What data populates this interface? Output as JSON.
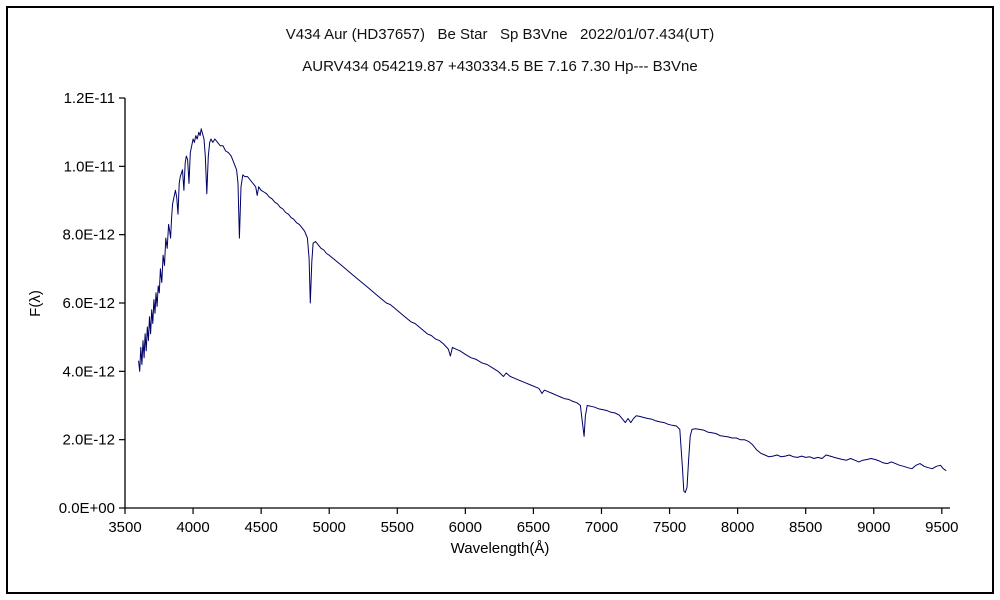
{
  "chart_data": {
    "type": "line",
    "title_line1": "V434 Aur (HD37657)   Be Star   Sp B3Vne   2022/01/07.434(UT)",
    "title_line2": "AURV434 054219.87 +430334.5 BE 7.16 7.30 Hp--- B3Vne",
    "xlabel": "Wavelength(Å)",
    "ylabel": "F(λ)",
    "xlim": [
      3500,
      9560
    ],
    "ylim": [
      0,
      12
    ],
    "y_unit": "1e-12",
    "line_color": "#000066",
    "axis_color": "#000000",
    "grid": false,
    "legend": "none",
    "xticks": [
      {
        "v": 3500,
        "label": "3500"
      },
      {
        "v": 4000,
        "label": "4000"
      },
      {
        "v": 4500,
        "label": "4500"
      },
      {
        "v": 5000,
        "label": "5000"
      },
      {
        "v": 5500,
        "label": "5500"
      },
      {
        "v": 6000,
        "label": "6000"
      },
      {
        "v": 6500,
        "label": "6500"
      },
      {
        "v": 7000,
        "label": "7000"
      },
      {
        "v": 7500,
        "label": "7500"
      },
      {
        "v": 8000,
        "label": "8000"
      },
      {
        "v": 8500,
        "label": "8500"
      },
      {
        "v": 9000,
        "label": "9000"
      },
      {
        "v": 9500,
        "label": "9500"
      }
    ],
    "yticks": [
      {
        "v": 0,
        "label": "0.0E+00"
      },
      {
        "v": 2,
        "label": "2.0E-12"
      },
      {
        "v": 4,
        "label": "4.0E-12"
      },
      {
        "v": 6,
        "label": "6.0E-12"
      },
      {
        "v": 8,
        "label": "8.0E-12"
      },
      {
        "v": 10,
        "label": "1.0E-11"
      },
      {
        "v": 12,
        "label": "1.2E-11"
      }
    ],
    "points": [
      [
        3600,
        4.3
      ],
      [
        3608,
        4.0
      ],
      [
        3616,
        4.7
      ],
      [
        3624,
        4.2
      ],
      [
        3632,
        4.9
      ],
      [
        3640,
        4.4
      ],
      [
        3648,
        5.1
      ],
      [
        3656,
        4.6
      ],
      [
        3664,
        5.3
      ],
      [
        3672,
        4.9
      ],
      [
        3680,
        5.6
      ],
      [
        3688,
        5.1
      ],
      [
        3696,
        5.8
      ],
      [
        3704,
        5.4
      ],
      [
        3712,
        6.1
      ],
      [
        3720,
        5.7
      ],
      [
        3728,
        6.3
      ],
      [
        3736,
        5.9
      ],
      [
        3744,
        6.5
      ],
      [
        3752,
        6.3
      ],
      [
        3760,
        7.0
      ],
      [
        3770,
        6.6
      ],
      [
        3780,
        7.4
      ],
      [
        3790,
        7.1
      ],
      [
        3800,
        7.9
      ],
      [
        3810,
        7.6
      ],
      [
        3820,
        8.3
      ],
      [
        3828,
        8.1
      ],
      [
        3835,
        7.9
      ],
      [
        3842,
        8.5
      ],
      [
        3850,
        8.9
      ],
      [
        3860,
        9.1
      ],
      [
        3870,
        9.3
      ],
      [
        3880,
        9.1
      ],
      [
        3889,
        8.6
      ],
      [
        3898,
        9.5
      ],
      [
        3906,
        9.7
      ],
      [
        3914,
        9.8
      ],
      [
        3922,
        9.9
      ],
      [
        3933,
        9.3
      ],
      [
        3942,
        10.1
      ],
      [
        3950,
        10.3
      ],
      [
        3960,
        10.2
      ],
      [
        3970,
        9.5
      ],
      [
        3980,
        10.4
      ],
      [
        3990,
        10.6
      ],
      [
        4000,
        10.8
      ],
      [
        4010,
        10.7
      ],
      [
        4020,
        10.9
      ],
      [
        4030,
        10.8
      ],
      [
        4042,
        11.0
      ],
      [
        4052,
        10.9
      ],
      [
        4060,
        11.1
      ],
      [
        4070,
        10.95
      ],
      [
        4080,
        10.8
      ],
      [
        4090,
        10.3
      ],
      [
        4101,
        9.2
      ],
      [
        4112,
        10.3
      ],
      [
        4122,
        10.7
      ],
      [
        4132,
        10.8
      ],
      [
        4145,
        10.7
      ],
      [
        4160,
        10.8
      ],
      [
        4180,
        10.7
      ],
      [
        4200,
        10.6
      ],
      [
        4220,
        10.6
      ],
      [
        4240,
        10.45
      ],
      [
        4260,
        10.4
      ],
      [
        4280,
        10.3
      ],
      [
        4300,
        10.1
      ],
      [
        4320,
        9.9
      ],
      [
        4330,
        9.5
      ],
      [
        4340,
        7.9
      ],
      [
        4352,
        9.4
      ],
      [
        4365,
        9.75
      ],
      [
        4380,
        9.7
      ],
      [
        4400,
        9.7
      ],
      [
        4420,
        9.6
      ],
      [
        4440,
        9.5
      ],
      [
        4460,
        9.4
      ],
      [
        4471,
        9.15
      ],
      [
        4482,
        9.4
      ],
      [
        4500,
        9.3
      ],
      [
        4520,
        9.25
      ],
      [
        4540,
        9.2
      ],
      [
        4560,
        9.1
      ],
      [
        4580,
        9.05
      ],
      [
        4600,
        8.95
      ],
      [
        4620,
        8.9
      ],
      [
        4640,
        8.8
      ],
      [
        4660,
        8.75
      ],
      [
        4680,
        8.65
      ],
      [
        4700,
        8.6
      ],
      [
        4720,
        8.5
      ],
      [
        4740,
        8.45
      ],
      [
        4760,
        8.35
      ],
      [
        4780,
        8.3
      ],
      [
        4800,
        8.2
      ],
      [
        4820,
        8.1
      ],
      [
        4840,
        7.9
      ],
      [
        4852,
        7.3
      ],
      [
        4861,
        6.0
      ],
      [
        4872,
        7.2
      ],
      [
        4882,
        7.75
      ],
      [
        4900,
        7.8
      ],
      [
        4920,
        7.7
      ],
      [
        4940,
        7.6
      ],
      [
        4960,
        7.55
      ],
      [
        4980,
        7.45
      ],
      [
        5000,
        7.4
      ],
      [
        5030,
        7.3
      ],
      [
        5060,
        7.2
      ],
      [
        5090,
        7.1
      ],
      [
        5120,
        7.0
      ],
      [
        5150,
        6.9
      ],
      [
        5180,
        6.8
      ],
      [
        5210,
        6.7
      ],
      [
        5240,
        6.6
      ],
      [
        5270,
        6.5
      ],
      [
        5300,
        6.4
      ],
      [
        5330,
        6.3
      ],
      [
        5360,
        6.2
      ],
      [
        5390,
        6.1
      ],
      [
        5420,
        6.0
      ],
      [
        5450,
        5.95
      ],
      [
        5480,
        5.85
      ],
      [
        5510,
        5.75
      ],
      [
        5540,
        5.65
      ],
      [
        5570,
        5.55
      ],
      [
        5600,
        5.45
      ],
      [
        5630,
        5.4
      ],
      [
        5660,
        5.3
      ],
      [
        5690,
        5.2
      ],
      [
        5720,
        5.1
      ],
      [
        5750,
        5.05
      ],
      [
        5780,
        4.95
      ],
      [
        5810,
        4.9
      ],
      [
        5840,
        4.8
      ],
      [
        5875,
        4.65
      ],
      [
        5890,
        4.45
      ],
      [
        5905,
        4.7
      ],
      [
        5930,
        4.65
      ],
      [
        5960,
        4.6
      ],
      [
        6000,
        4.5
      ],
      [
        6040,
        4.4
      ],
      [
        6080,
        4.35
      ],
      [
        6120,
        4.25
      ],
      [
        6160,
        4.2
      ],
      [
        6200,
        4.1
      ],
      [
        6240,
        4.0
      ],
      [
        6280,
        3.85
      ],
      [
        6300,
        3.95
      ],
      [
        6330,
        3.85
      ],
      [
        6360,
        3.8
      ],
      [
        6390,
        3.75
      ],
      [
        6420,
        3.7
      ],
      [
        6450,
        3.65
      ],
      [
        6480,
        3.6
      ],
      [
        6510,
        3.55
      ],
      [
        6540,
        3.5
      ],
      [
        6563,
        3.35
      ],
      [
        6580,
        3.45
      ],
      [
        6610,
        3.4
      ],
      [
        6640,
        3.35
      ],
      [
        6670,
        3.3
      ],
      [
        6700,
        3.25
      ],
      [
        6730,
        3.2
      ],
      [
        6760,
        3.18
      ],
      [
        6790,
        3.12
      ],
      [
        6820,
        3.08
      ],
      [
        6845,
        3.0
      ],
      [
        6860,
        2.5
      ],
      [
        6872,
        2.1
      ],
      [
        6882,
        2.7
      ],
      [
        6895,
        3.0
      ],
      [
        6920,
        2.98
      ],
      [
        6950,
        2.95
      ],
      [
        6980,
        2.9
      ],
      [
        7010,
        2.88
      ],
      [
        7040,
        2.85
      ],
      [
        7070,
        2.8
      ],
      [
        7100,
        2.78
      ],
      [
        7130,
        2.72
      ],
      [
        7155,
        2.6
      ],
      [
        7175,
        2.5
      ],
      [
        7195,
        2.62
      ],
      [
        7215,
        2.5
      ],
      [
        7235,
        2.62
      ],
      [
        7255,
        2.7
      ],
      [
        7280,
        2.68
      ],
      [
        7310,
        2.65
      ],
      [
        7340,
        2.62
      ],
      [
        7370,
        2.6
      ],
      [
        7400,
        2.55
      ],
      [
        7430,
        2.52
      ],
      [
        7460,
        2.5
      ],
      [
        7490,
        2.45
      ],
      [
        7520,
        2.42
      ],
      [
        7550,
        2.4
      ],
      [
        7575,
        2.3
      ],
      [
        7594,
        1.2
      ],
      [
        7605,
        0.5
      ],
      [
        7615,
        0.45
      ],
      [
        7628,
        0.6
      ],
      [
        7640,
        1.4
      ],
      [
        7652,
        2.1
      ],
      [
        7665,
        2.3
      ],
      [
        7690,
        2.32
      ],
      [
        7720,
        2.3
      ],
      [
        7750,
        2.28
      ],
      [
        7780,
        2.22
      ],
      [
        7810,
        2.2
      ],
      [
        7840,
        2.18
      ],
      [
        7870,
        2.12
      ],
      [
        7900,
        2.1
      ],
      [
        7930,
        2.08
      ],
      [
        7960,
        2.05
      ],
      [
        7990,
        2.05
      ],
      [
        8020,
        2.0
      ],
      [
        8050,
        2.0
      ],
      [
        8080,
        1.95
      ],
      [
        8110,
        1.85
      ],
      [
        8140,
        1.7
      ],
      [
        8170,
        1.6
      ],
      [
        8200,
        1.55
      ],
      [
        8230,
        1.5
      ],
      [
        8260,
        1.52
      ],
      [
        8290,
        1.55
      ],
      [
        8320,
        1.5
      ],
      [
        8350,
        1.52
      ],
      [
        8380,
        1.55
      ],
      [
        8410,
        1.5
      ],
      [
        8440,
        1.48
      ],
      [
        8470,
        1.52
      ],
      [
        8500,
        1.48
      ],
      [
        8530,
        1.5
      ],
      [
        8560,
        1.45
      ],
      [
        8590,
        1.48
      ],
      [
        8620,
        1.45
      ],
      [
        8650,
        1.55
      ],
      [
        8680,
        1.52
      ],
      [
        8710,
        1.48
      ],
      [
        8740,
        1.45
      ],
      [
        8770,
        1.42
      ],
      [
        8800,
        1.4
      ],
      [
        8830,
        1.45
      ],
      [
        8860,
        1.4
      ],
      [
        8890,
        1.35
      ],
      [
        8920,
        1.4
      ],
      [
        8950,
        1.42
      ],
      [
        8980,
        1.45
      ],
      [
        9010,
        1.42
      ],
      [
        9040,
        1.38
      ],
      [
        9070,
        1.32
      ],
      [
        9100,
        1.3
      ],
      [
        9130,
        1.35
      ],
      [
        9160,
        1.3
      ],
      [
        9190,
        1.25
      ],
      [
        9220,
        1.22
      ],
      [
        9250,
        1.18
      ],
      [
        9280,
        1.15
      ],
      [
        9310,
        1.25
      ],
      [
        9340,
        1.3
      ],
      [
        9370,
        1.22
      ],
      [
        9400,
        1.18
      ],
      [
        9430,
        1.15
      ],
      [
        9460,
        1.22
      ],
      [
        9490,
        1.25
      ],
      [
        9510,
        1.15
      ],
      [
        9530,
        1.1
      ]
    ]
  }
}
